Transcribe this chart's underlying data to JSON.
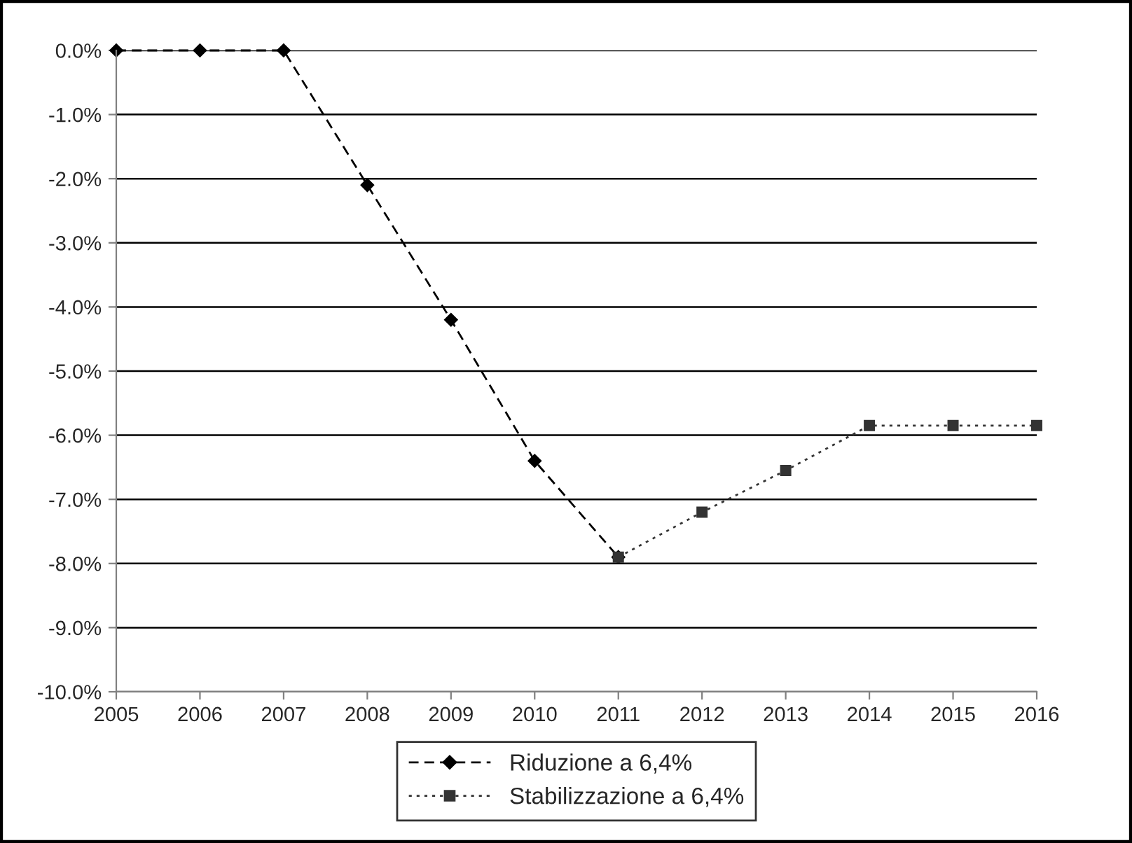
{
  "chart_data": {
    "type": "line",
    "xlim": [
      2005,
      2016
    ],
    "xticks": [
      2005,
      2006,
      2007,
      2008,
      2009,
      2010,
      2011,
      2012,
      2013,
      2014,
      2015,
      2016
    ],
    "ylim": [
      -10,
      0
    ],
    "yticks": [
      {
        "value": 0,
        "label": "0.0%"
      },
      {
        "value": -1,
        "label": "-1.0%"
      },
      {
        "value": -2,
        "label": "-2.0%"
      },
      {
        "value": -3,
        "label": "-3.0%"
      },
      {
        "value": -4,
        "label": "-4.0%"
      },
      {
        "value": -5,
        "label": "-5.0%"
      },
      {
        "value": -6,
        "label": "-6.0%"
      },
      {
        "value": -7,
        "label": "-7.0%"
      },
      {
        "value": -8,
        "label": "-8.0%"
      },
      {
        "value": -9,
        "label": "-9.0%"
      },
      {
        "value": -10,
        "label": "-10.0%"
      }
    ],
    "grid": "y",
    "legend": "bottom",
    "series": [
      {
        "name": "Riduzione a 6,4%",
        "color": "#000000",
        "marker": "diamond",
        "line_style": "dashed",
        "x": [
          2005,
          2006,
          2007,
          2008,
          2009,
          2010,
          2011
        ],
        "values": [
          0,
          0,
          0,
          -2.1,
          -4.2,
          -6.4,
          -7.9
        ]
      },
      {
        "name": "Stabilizzazione a 6,4%",
        "color": "#333333",
        "marker": "square",
        "line_style": "dotted",
        "x": [
          2011,
          2012,
          2013,
          2014,
          2015,
          2016
        ],
        "values": [
          -7.9,
          -7.2,
          -6.55,
          -5.85,
          -5.85,
          -5.85
        ]
      }
    ]
  }
}
